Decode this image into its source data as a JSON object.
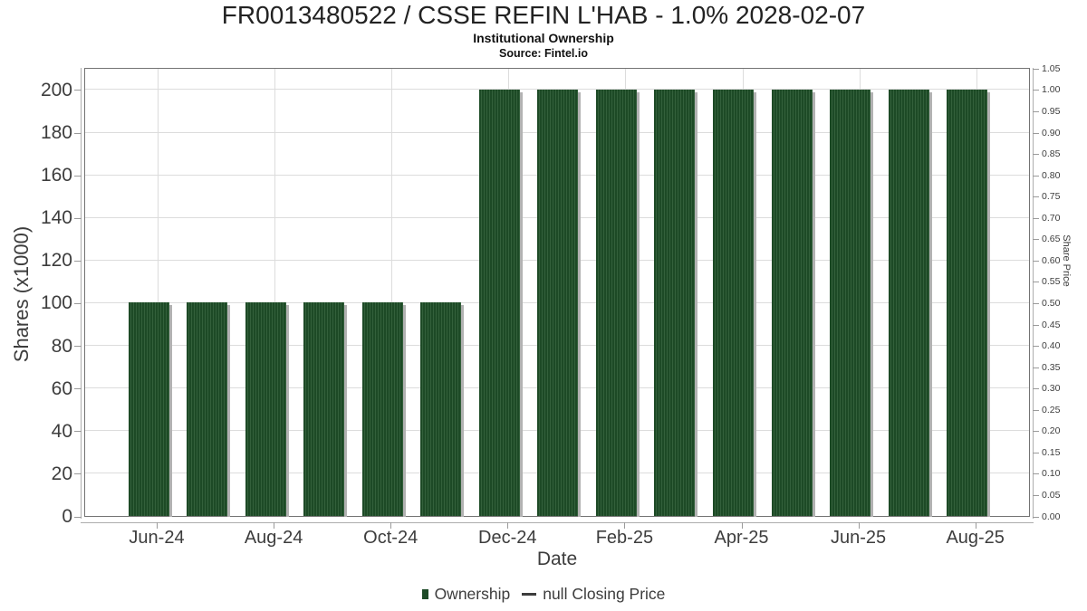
{
  "title": "FR0013480522 / CSSE REFIN L'HAB - 1.0% 2028-02-07",
  "subtitle": "Institutional Ownership",
  "source": "Source: Fintel.io",
  "colors": {
    "bar": "#1d4a26",
    "bar_stripe": "#33603b",
    "bar_shadow": "#b2b2b2",
    "grid": "#dcdcdc",
    "plot_border": "#737373",
    "tick": "#9a9a9a",
    "text": "#3d3d3d"
  },
  "chart_data": {
    "type": "bar",
    "title": "FR0013480522 / CSSE REFIN L'HAB - 1.0% 2028-02-07",
    "subtitle": "Institutional Ownership",
    "source": "Source: Fintel.io",
    "categories": [
      "Jun-24",
      "Jul-24",
      "Aug-24",
      "Sep-24",
      "Oct-24",
      "Nov-24",
      "Dec-24",
      "Jan-25",
      "Feb-25",
      "Mar-25",
      "Apr-25",
      "May-25",
      "Jun-25",
      "Jul-25",
      "Aug-25"
    ],
    "series": [
      {
        "name": "Ownership",
        "values": [
          100,
          100,
          100,
          100,
          100,
          100,
          200,
          200,
          200,
          200,
          200,
          200,
          200,
          200,
          200
        ]
      },
      {
        "name": "null Closing Price",
        "values": []
      }
    ],
    "xlabel": "Date",
    "ylabel_left": "Shares (x1000)",
    "ylabel_right": "Share Price",
    "x_tick_labels": [
      "Jun-24",
      "Aug-24",
      "Oct-24",
      "Dec-24",
      "Feb-25",
      "Apr-25",
      "Jun-25",
      "Aug-25"
    ],
    "y_left_ticks": [
      0,
      20,
      40,
      60,
      80,
      100,
      120,
      140,
      160,
      180,
      200
    ],
    "y_left_range": [
      0,
      210.6
    ],
    "y_right_ticks": [
      0.0,
      0.05,
      0.1,
      0.15,
      0.2,
      0.25,
      0.3,
      0.35,
      0.4,
      0.45,
      0.5,
      0.55,
      0.6,
      0.65,
      0.7,
      0.75,
      0.8,
      0.85,
      0.9,
      0.95,
      1.0,
      1.05
    ],
    "y_right_range": [
      0,
      1.053
    ],
    "grid": true,
    "legend_position": "bottom",
    "legend": {
      "ownership": "Ownership",
      "closing_price": "null Closing Price"
    }
  }
}
